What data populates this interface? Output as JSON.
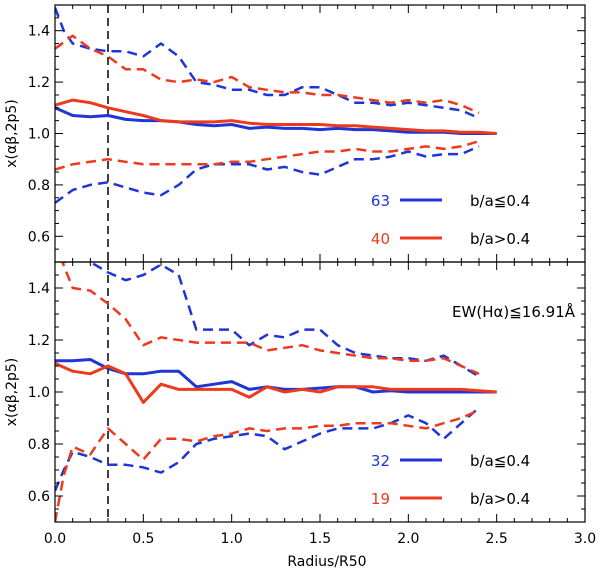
{
  "chart_data": {
    "type": "line",
    "shared_x": {
      "xlabel": "Radius/R50",
      "xlim": [
        0.0,
        3.0
      ],
      "xticks": [
        "0.0",
        "0.5",
        "1.0",
        "1.5",
        "2.0",
        "2.5",
        "3.0"
      ],
      "vline_x": 0.3
    },
    "colors": {
      "blue": "#1f35d6",
      "red": "#ee3a1c"
    },
    "panels": [
      {
        "id": "top",
        "ylabel": "x(αβ,2p5)",
        "ylim": [
          0.5,
          1.5
        ],
        "yticks": [
          "0.6",
          "0.8",
          "1.0",
          "1.2",
          "1.4"
        ],
        "annotation": "",
        "legend": [
          {
            "count": "63",
            "label": "b/a≦0.4",
            "color": "blue"
          },
          {
            "count": "40",
            "label": "b/a>0.4",
            "color": "red"
          }
        ],
        "series": [
          {
            "name": "b/a≦0.4 median",
            "color": "blue",
            "style": "solid",
            "x": [
              0,
              0.1,
              0.2,
              0.3,
              0.4,
              0.5,
              0.6,
              0.7,
              0.8,
              0.9,
              1.0,
              1.1,
              1.2,
              1.3,
              1.4,
              1.5,
              1.6,
              1.7,
              1.8,
              1.9,
              2.0,
              2.1,
              2.2,
              2.3,
              2.4,
              2.5
            ],
            "y": [
              1.1,
              1.07,
              1.065,
              1.07,
              1.055,
              1.05,
              1.05,
              1.045,
              1.035,
              1.03,
              1.035,
              1.02,
              1.025,
              1.02,
              1.02,
              1.015,
              1.02,
              1.015,
              1.015,
              1.01,
              1.005,
              1.005,
              1.005,
              1.0,
              1.0,
              1.0
            ]
          },
          {
            "name": "b/a>0.4 median",
            "color": "red",
            "style": "solid",
            "x": [
              0,
              0.1,
              0.2,
              0.3,
              0.4,
              0.5,
              0.6,
              0.7,
              0.8,
              0.9,
              1.0,
              1.1,
              1.2,
              1.3,
              1.4,
              1.5,
              1.6,
              1.7,
              1.8,
              1.9,
              2.0,
              2.1,
              2.2,
              2.3,
              2.4,
              2.5
            ],
            "y": [
              1.11,
              1.13,
              1.12,
              1.1,
              1.085,
              1.07,
              1.05,
              1.045,
              1.045,
              1.045,
              1.05,
              1.04,
              1.035,
              1.035,
              1.035,
              1.035,
              1.03,
              1.03,
              1.025,
              1.02,
              1.015,
              1.01,
              1.01,
              1.005,
              1.005,
              1.0
            ]
          },
          {
            "name": "b/a≦0.4 upper",
            "color": "blue",
            "style": "dashed",
            "x": [
              0,
              0.05,
              0.1,
              0.2,
              0.3,
              0.4,
              0.5,
              0.6,
              0.7,
              0.8,
              0.9,
              1.0,
              1.1,
              1.2,
              1.3,
              1.4,
              1.5,
              1.6,
              1.7,
              1.8,
              1.9,
              2.0,
              2.1,
              2.2,
              2.3,
              2.4
            ],
            "y": [
              1.49,
              1.4,
              1.35,
              1.33,
              1.32,
              1.32,
              1.3,
              1.35,
              1.3,
              1.2,
              1.19,
              1.17,
              1.17,
              1.15,
              1.15,
              1.18,
              1.18,
              1.15,
              1.12,
              1.12,
              1.11,
              1.12,
              1.11,
              1.1,
              1.09,
              1.06
            ]
          },
          {
            "name": "b/a>0.4 upper",
            "color": "red",
            "style": "dashed",
            "x": [
              0,
              0.1,
              0.2,
              0.3,
              0.4,
              0.5,
              0.6,
              0.7,
              0.8,
              0.9,
              1.0,
              1.1,
              1.2,
              1.3,
              1.4,
              1.5,
              1.6,
              1.7,
              1.8,
              1.9,
              2.0,
              2.1,
              2.2,
              2.3,
              2.4
            ],
            "y": [
              1.33,
              1.38,
              1.33,
              1.3,
              1.25,
              1.25,
              1.21,
              1.2,
              1.21,
              1.2,
              1.22,
              1.18,
              1.17,
              1.16,
              1.16,
              1.15,
              1.15,
              1.14,
              1.13,
              1.12,
              1.13,
              1.12,
              1.13,
              1.11,
              1.08
            ]
          },
          {
            "name": "b/a≦0.4 lower",
            "color": "blue",
            "style": "dashed",
            "x": [
              0,
              0.1,
              0.2,
              0.3,
              0.4,
              0.5,
              0.6,
              0.7,
              0.8,
              0.9,
              1.0,
              1.1,
              1.2,
              1.3,
              1.4,
              1.5,
              1.6,
              1.7,
              1.8,
              1.9,
              2.0,
              2.1,
              2.2,
              2.3,
              2.4
            ],
            "y": [
              0.73,
              0.78,
              0.8,
              0.81,
              0.79,
              0.77,
              0.76,
              0.8,
              0.86,
              0.88,
              0.88,
              0.88,
              0.86,
              0.87,
              0.85,
              0.84,
              0.87,
              0.9,
              0.9,
              0.91,
              0.93,
              0.91,
              0.92,
              0.92,
              0.95
            ]
          },
          {
            "name": "b/a>0.4 lower",
            "color": "red",
            "style": "dashed",
            "x": [
              0,
              0.1,
              0.2,
              0.3,
              0.4,
              0.5,
              0.6,
              0.7,
              0.8,
              0.9,
              1.0,
              1.1,
              1.2,
              1.3,
              1.4,
              1.5,
              1.6,
              1.7,
              1.8,
              1.9,
              2.0,
              2.1,
              2.2,
              2.3,
              2.4
            ],
            "y": [
              0.86,
              0.88,
              0.89,
              0.9,
              0.89,
              0.88,
              0.88,
              0.88,
              0.88,
              0.88,
              0.89,
              0.89,
              0.9,
              0.91,
              0.92,
              0.93,
              0.93,
              0.94,
              0.93,
              0.93,
              0.94,
              0.95,
              0.94,
              0.95,
              0.97
            ]
          }
        ]
      },
      {
        "id": "bottom",
        "ylabel": "x(αβ,2p5)",
        "ylim": [
          0.5,
          1.5
        ],
        "yticks": [
          "0.6",
          "0.8",
          "1.0",
          "1.2",
          "1.4"
        ],
        "annotation": "EW(Hα)≦16.91Å",
        "legend": [
          {
            "count": "32",
            "label": "b/a≦0.4",
            "color": "blue"
          },
          {
            "count": "19",
            "label": "b/a>0.4",
            "color": "red"
          }
        ],
        "series": [
          {
            "name": "b/a≦0.4 median",
            "color": "blue",
            "style": "solid",
            "x": [
              0,
              0.1,
              0.2,
              0.3,
              0.4,
              0.5,
              0.6,
              0.7,
              0.8,
              0.9,
              1.0,
              1.1,
              1.2,
              1.3,
              1.4,
              1.5,
              1.6,
              1.7,
              1.8,
              1.9,
              2.0,
              2.1,
              2.2,
              2.3,
              2.4,
              2.5
            ],
            "y": [
              1.12,
              1.12,
              1.125,
              1.09,
              1.07,
              1.07,
              1.08,
              1.08,
              1.02,
              1.03,
              1.04,
              1.01,
              1.02,
              1.01,
              1.01,
              1.015,
              1.02,
              1.02,
              1.0,
              1.005,
              1.0,
              1.0,
              1.0,
              1.0,
              1.0,
              1.0
            ]
          },
          {
            "name": "b/a>0.4 median",
            "color": "red",
            "style": "solid",
            "x": [
              0,
              0.1,
              0.2,
              0.3,
              0.4,
              0.5,
              0.6,
              0.7,
              0.8,
              0.9,
              1.0,
              1.1,
              1.2,
              1.3,
              1.4,
              1.5,
              1.6,
              1.7,
              1.8,
              1.9,
              2.0,
              2.1,
              2.2,
              2.3,
              2.4,
              2.5
            ],
            "y": [
              1.11,
              1.08,
              1.07,
              1.1,
              1.07,
              0.96,
              1.03,
              1.01,
              1.01,
              1.01,
              1.01,
              0.98,
              1.02,
              1.0,
              1.01,
              1.0,
              1.02,
              1.02,
              1.02,
              1.01,
              1.01,
              1.01,
              1.01,
              1.01,
              1.005,
              1.0
            ]
          },
          {
            "name": "b/a≦0.4 upper",
            "color": "blue",
            "style": "dashed",
            "x": [
              0.05,
              0.15,
              0.2,
              0.3,
              0.4,
              0.5,
              0.6,
              0.7,
              0.8,
              0.9,
              1.0,
              1.1,
              1.2,
              1.3,
              1.4,
              1.5,
              1.6,
              1.7,
              1.8,
              1.9,
              2.0,
              2.1,
              2.2,
              2.3,
              2.4
            ],
            "y": [
              1.5,
              1.52,
              1.5,
              1.46,
              1.43,
              1.45,
              1.49,
              1.45,
              1.24,
              1.24,
              1.24,
              1.18,
              1.22,
              1.21,
              1.24,
              1.24,
              1.18,
              1.15,
              1.14,
              1.13,
              1.13,
              1.12,
              1.14,
              1.1,
              1.06
            ]
          },
          {
            "name": "b/a>0.4 upper",
            "color": "red",
            "style": "dashed",
            "x": [
              0.03,
              0.1,
              0.2,
              0.3,
              0.4,
              0.5,
              0.6,
              0.7,
              0.8,
              0.9,
              1.0,
              1.1,
              1.2,
              1.3,
              1.4,
              1.5,
              1.6,
              1.7,
              1.8,
              1.9,
              2.0,
              2.1,
              2.2,
              2.3,
              2.4
            ],
            "y": [
              1.52,
              1.4,
              1.39,
              1.34,
              1.28,
              1.18,
              1.21,
              1.2,
              1.19,
              1.19,
              1.19,
              1.19,
              1.16,
              1.17,
              1.18,
              1.16,
              1.15,
              1.14,
              1.13,
              1.13,
              1.12,
              1.12,
              1.13,
              1.1,
              1.07
            ]
          },
          {
            "name": "b/a≦0.4 lower",
            "color": "blue",
            "style": "dashed",
            "x": [
              0,
              0.05,
              0.1,
              0.2,
              0.3,
              0.4,
              0.5,
              0.6,
              0.7,
              0.8,
              0.9,
              1.0,
              1.1,
              1.2,
              1.3,
              1.4,
              1.5,
              1.6,
              1.7,
              1.8,
              1.9,
              2.0,
              2.1,
              2.2,
              2.3,
              2.4
            ],
            "y": [
              0.62,
              0.7,
              0.77,
              0.75,
              0.72,
              0.72,
              0.71,
              0.69,
              0.73,
              0.8,
              0.82,
              0.83,
              0.84,
              0.83,
              0.78,
              0.81,
              0.84,
              0.86,
              0.86,
              0.86,
              0.88,
              0.91,
              0.88,
              0.82,
              0.88,
              0.94
            ]
          },
          {
            "name": "b/a>0.4 lower",
            "color": "red",
            "style": "dashed",
            "x": [
              0,
              0.05,
              0.1,
              0.2,
              0.3,
              0.4,
              0.5,
              0.6,
              0.7,
              0.8,
              0.9,
              1.0,
              1.1,
              1.2,
              1.3,
              1.4,
              1.5,
              1.6,
              1.7,
              1.8,
              1.9,
              2.0,
              2.1,
              2.2,
              2.3,
              2.4
            ],
            "y": [
              0.5,
              0.68,
              0.79,
              0.76,
              0.86,
              0.8,
              0.74,
              0.82,
              0.82,
              0.81,
              0.83,
              0.84,
              0.86,
              0.85,
              0.86,
              0.86,
              0.87,
              0.87,
              0.88,
              0.88,
              0.88,
              0.87,
              0.86,
              0.88,
              0.9,
              0.93
            ]
          }
        ]
      }
    ]
  }
}
